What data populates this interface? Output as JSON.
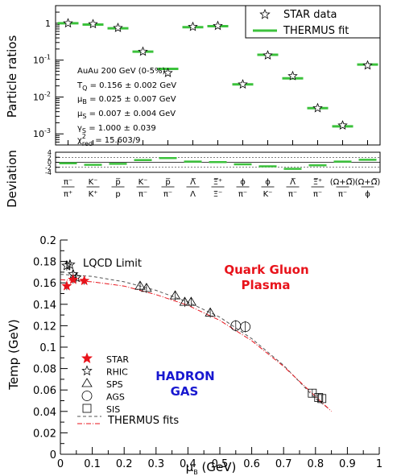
{
  "chart_data": [
    {
      "type": "scatter",
      "ylabel": "Particle ratios",
      "yscale": "log",
      "ylim": [
        0.0005,
        3
      ],
      "yticks": [
        "10^-3",
        "10^-2",
        "10^-1",
        "1"
      ],
      "legend": {
        "placement": "top-right",
        "entries": [
          "STAR data",
          "THERMUS fit"
        ]
      },
      "annotations": {
        "system": "AuAu 200 GeV (0-5%)",
        "tq": "= 0.156 ± 0.002 GeV",
        "mub": "= 0.025 ± 0.007 GeV",
        "mus": "= 0.007 ± 0.004 GeV",
        "gs": "= 1.000 ± 0.039",
        "chi": "= 15.603/9"
      },
      "categories": [
        "π⁻/π⁺",
        "K⁻/K⁺",
        "p̅/p",
        "K⁻/π⁻",
        "p̅/π⁻",
        "Λ̅/Λ",
        "Ξ̅⁺/Ξ⁻",
        "ϕ/π⁻",
        "ϕ/K⁻",
        "Λ̅/π⁻",
        "Ξ̅⁺/π⁻",
        "(Ω+Ω̅)/π⁻",
        "(Ω+Ω̅)/ϕ"
      ],
      "series": [
        {
          "name": "STAR data",
          "marker": "open-star",
          "values": [
            1.0,
            0.95,
            0.75,
            0.17,
            0.045,
            0.8,
            0.85,
            0.022,
            0.135,
            0.037,
            0.005,
            0.0017,
            0.072
          ]
        },
        {
          "name": "THERMUS fit",
          "marker": "green-bar",
          "values": [
            1.0,
            0.92,
            0.73,
            0.17,
            0.058,
            0.78,
            0.83,
            0.022,
            0.14,
            0.032,
            0.005,
            0.0016,
            0.076
          ]
        }
      ],
      "colors": {
        "fit": "#3cc23c",
        "data": "#000000"
      }
    },
    {
      "type": "bar",
      "ylabel": "Deviation",
      "ylim": [
        -4,
        4
      ],
      "yticks": [
        "-4",
        "-2",
        "0",
        "2",
        "4"
      ],
      "series": [
        {
          "name": "",
          "values": [
            -0.4,
            -1.0,
            -0.6,
            0.9,
            1.7,
            0.3,
            0.1,
            -0.8,
            -1.6,
            -2.6,
            -1.2,
            0.3,
            1.0
          ]
        }
      ]
    },
    {
      "type": "scatter",
      "xlabel": "μ",
      "xlabel_sub": "B",
      "xlabel_unit": " (GeV)",
      "ylabel": "Temp (GeV)",
      "xlim": [
        0,
        1.0
      ],
      "ylim": [
        0,
        0.2
      ],
      "xticks": [
        "0",
        "0.1",
        "0.2",
        "0.3",
        "0.4",
        "0.5",
        "0.6",
        "0.7",
        "0.8",
        "0.9",
        "1"
      ],
      "yticks": [
        "0",
        "0.02",
        "0.04",
        "0.06",
        "0.08",
        "0.1",
        "0.12",
        "0.14",
        "0.16",
        "0.18",
        "0.2"
      ],
      "annotations": {
        "lqcd": "LQCD Limit",
        "qgp1": "Quark Gluon",
        "qgp2": "Plasma",
        "hadron1": "HADRON",
        "hadron2": "GAS"
      },
      "colors": {
        "qgp": "#e8131b",
        "hadron": "#1818d0",
        "star": "#e8131b",
        "dashed": "#555555",
        "dashdot": "#e8131b"
      },
      "legend": {
        "placement": "bottom-left",
        "entries": [
          "STAR",
          "RHIC",
          "SPS",
          "AGS",
          "SIS",
          "THERMUS fits"
        ]
      },
      "series": [
        {
          "name": "STAR",
          "marker": "filled-star",
          "points": [
            [
              0.02,
              0.157
            ],
            [
              0.04,
              0.163
            ],
            [
              0.075,
              0.162
            ]
          ]
        },
        {
          "name": "RHIC",
          "marker": "open-star",
          "points": [
            [
              0.02,
              0.176
            ],
            [
              0.03,
              0.177
            ],
            [
              0.04,
              0.168
            ],
            [
              0.05,
              0.165
            ]
          ]
        },
        {
          "name": "SPS",
          "marker": "open-triangle",
          "points": [
            [
              0.25,
              0.157
            ],
            [
              0.27,
              0.155
            ],
            [
              0.36,
              0.148
            ],
            [
              0.39,
              0.142
            ],
            [
              0.41,
              0.142
            ],
            [
              0.47,
              0.132
            ]
          ]
        },
        {
          "name": "AGS",
          "marker": "open-circle",
          "points": [
            [
              0.55,
              0.12
            ],
            [
              0.58,
              0.119
            ]
          ]
        },
        {
          "name": "SIS",
          "marker": "open-square",
          "points": [
            [
              0.79,
              0.057
            ],
            [
              0.81,
              0.053
            ],
            [
              0.82,
              0.052
            ]
          ]
        },
        {
          "name": "THERMUS fits",
          "lines": [
            {
              "style": "dashed",
              "points": [
                [
                  0.0,
                  0.168
                ],
                [
                  0.1,
                  0.166
                ],
                [
                  0.2,
                  0.161
                ],
                [
                  0.3,
                  0.153
                ],
                [
                  0.4,
                  0.142
                ],
                [
                  0.5,
                  0.128
                ],
                [
                  0.6,
                  0.108
                ],
                [
                  0.7,
                  0.083
                ],
                [
                  0.8,
                  0.052
                ],
                [
                  0.84,
                  0.043
                ]
              ]
            },
            {
              "style": "dashdot",
              "points": [
                [
                  0.0,
                  0.163
                ],
                [
                  0.1,
                  0.161
                ],
                [
                  0.2,
                  0.157
                ],
                [
                  0.3,
                  0.149
                ],
                [
                  0.4,
                  0.139
                ],
                [
                  0.5,
                  0.125
                ],
                [
                  0.6,
                  0.106
                ],
                [
                  0.7,
                  0.082
                ],
                [
                  0.8,
                  0.054
                ],
                [
                  0.85,
                  0.04
                ]
              ]
            }
          ]
        }
      ]
    }
  ]
}
